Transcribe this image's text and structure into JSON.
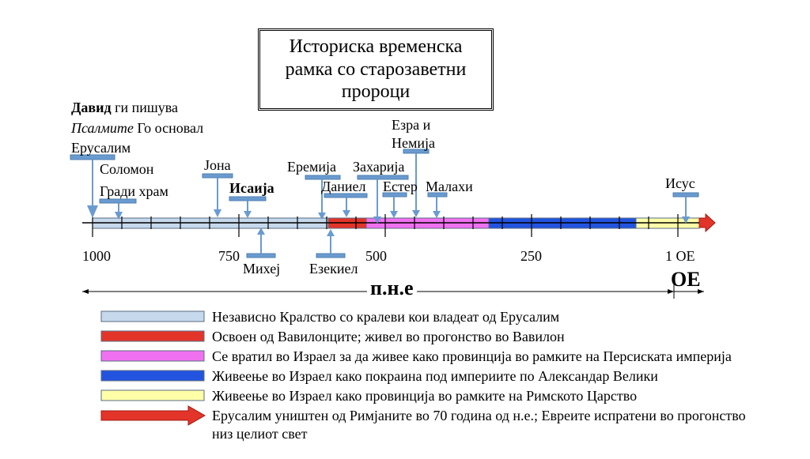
{
  "title": "Историска временска рамка со старозаветни пророци",
  "david": {
    "name": "Давид",
    "line1_rest": " ги пишува",
    "line2_italic": "Псалмите",
    "line2_rest": " Го основал",
    "line3": "Ерусалим"
  },
  "prophets": {
    "solomon": "Соломон",
    "builds_temple": "Гради храм",
    "jonah": "Јона",
    "isaiah": "Исаија",
    "jeremiah": "Еремија",
    "daniel": "Даниел",
    "zechariah": "Захарија",
    "esther": "Естер",
    "ezra": "Езра и",
    "nehemiah": "Немија",
    "malachi": "Малахи",
    "jesus": "Исус",
    "micah": "Михеј",
    "ezekiel": "Езекиел"
  },
  "axis": {
    "ticks": [
      "1000",
      "750",
      "500",
      "250",
      "1 ОЕ"
    ],
    "bce": "п.н.е",
    "ce": "ОЕ"
  },
  "colors": {
    "independent": "#c6d9ec",
    "babylon": "#e3342a",
    "persia": "#f071f0",
    "greek": "#2254e0",
    "rome": "#ffffa8",
    "destroyed": "#e3342a",
    "marker": "#6a9bd0"
  },
  "legend": [
    {
      "text": "Независно Кралство со кралеви кои владеат од Ерусалим"
    },
    {
      "text": "Освоен од Вавилонците; живел во прогонство во Вавилон"
    },
    {
      "text": "Се вратил во Израел за да живее како провинција во рамките на Персиската империја"
    },
    {
      "text": "Живеење во Израел како покраина под империите по Александар Велики"
    },
    {
      "text": "Живеење во Израел како провинција во рамките на Римското Царство"
    },
    {
      "text": "Ерусалим уништен од Римјаните во 70 година од н.е.; Евреите испратени во прогонство",
      "text2": "низ целиот свет"
    }
  ]
}
